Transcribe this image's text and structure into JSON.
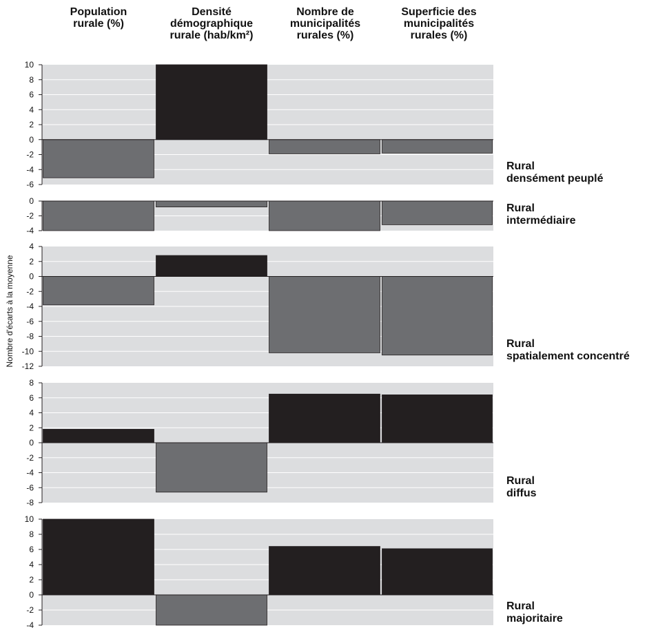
{
  "colors": {
    "positive": "#231f20",
    "negative": "#6d6e71",
    "panel_bg": "#dcdddf",
    "grid": "#ffffff"
  },
  "chart_data": {
    "type": "bar",
    "categories": [
      [
        "Population",
        "rurale (%)"
      ],
      [
        "Densité",
        "démographique",
        "rurale (hab/km²)"
      ],
      [
        "Nombre de",
        "municipalités",
        "rurales (%)"
      ],
      [
        "Superficie des",
        "municipalités",
        "rurales (%)"
      ]
    ],
    "ylabel": "Nombre d'écarts à la moyenne",
    "panels": [
      {
        "label": [
          "Rural",
          "densément peuplé"
        ],
        "ylim": [
          -6,
          10
        ],
        "ticks": [
          10,
          8,
          6,
          4,
          2,
          0,
          -2,
          -4,
          -6
        ],
        "values": [
          -5.1,
          10.0,
          -1.9,
          -1.8
        ]
      },
      {
        "label": [
          "Rural",
          "intermédiaire"
        ],
        "ylim": [
          -4,
          0
        ],
        "ticks": [
          0,
          -2,
          -4
        ],
        "values": [
          -4.0,
          -0.8,
          -4.0,
          -3.2
        ]
      },
      {
        "label": [
          "Rural",
          "spatialement concentré"
        ],
        "ylim": [
          -12,
          4
        ],
        "ticks": [
          4,
          2,
          0,
          -2,
          -4,
          -6,
          -8,
          -10,
          -12
        ],
        "values": [
          -3.8,
          2.8,
          -10.2,
          -10.5
        ]
      },
      {
        "label": [
          "Rural",
          "diffus"
        ],
        "ylim": [
          -8,
          8
        ],
        "ticks": [
          8,
          6,
          4,
          2,
          0,
          -2,
          -4,
          -6,
          -8
        ],
        "values": [
          1.8,
          -6.6,
          6.5,
          6.4
        ]
      },
      {
        "label": [
          "Rural",
          "majoritaire"
        ],
        "ylim": [
          -4,
          10
        ],
        "ticks": [
          10,
          8,
          6,
          4,
          2,
          0,
          -2,
          -4
        ],
        "values": [
          10.0,
          -4.0,
          6.4,
          6.1
        ]
      }
    ]
  }
}
